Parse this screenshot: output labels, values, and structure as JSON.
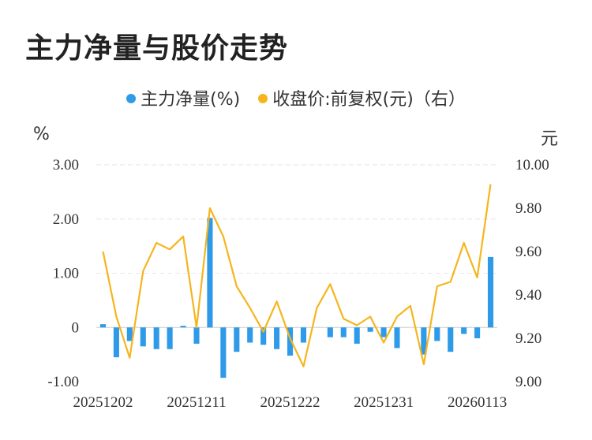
{
  "title": "主力净量与股价走势",
  "legend": {
    "net": "主力净量(%)",
    "price": "收盘价:前复权(元)（右）"
  },
  "colors": {
    "bar": "#2f9be8",
    "line": "#f5b51d",
    "grid": "#e6e6e6"
  },
  "chart_data": {
    "type": "bar+line",
    "title": "主力净量与股价走势",
    "left_unit": "%",
    "right_unit": "元",
    "y_left_ticks": [
      "3.00",
      "2.00",
      "1.00",
      "0",
      "-1.00"
    ],
    "y_right_ticks": [
      "10.00",
      "9.80",
      "9.60",
      "9.40",
      "9.20",
      "9.00"
    ],
    "x_tick_labels": [
      {
        "index": 0,
        "label": "20251202"
      },
      {
        "index": 7,
        "label": "20251211"
      },
      {
        "index": 14,
        "label": "20251222"
      },
      {
        "index": 21,
        "label": "20251231"
      },
      {
        "index": 28,
        "label": "20260113"
      }
    ],
    "ylim_left": [
      -1.0,
      3.0
    ],
    "ylim_right": [
      9.0,
      10.0
    ],
    "grid": true,
    "legend_position": "top",
    "series": [
      {
        "name": "主力净量(%)",
        "type": "bar",
        "axis": "left",
        "values": [
          0.06,
          -0.55,
          -0.25,
          -0.35,
          -0.4,
          -0.4,
          0.03,
          -0.3,
          2.02,
          -0.93,
          -0.45,
          -0.28,
          -0.32,
          -0.4,
          -0.52,
          -0.28,
          0,
          -0.18,
          -0.18,
          -0.3,
          -0.08,
          -0.18,
          -0.38,
          0,
          -0.5,
          -0.25,
          -0.45,
          -0.12,
          -0.2,
          1.3
        ]
      },
      {
        "name": "收盘价:前复权(元)（右）",
        "type": "line",
        "axis": "right",
        "values": [
          9.6,
          9.3,
          9.11,
          9.51,
          9.64,
          9.61,
          9.67,
          9.25,
          9.8,
          9.67,
          9.44,
          9.34,
          9.23,
          9.37,
          9.2,
          9.07,
          9.34,
          9.45,
          9.29,
          9.26,
          9.3,
          9.18,
          9.3,
          9.35,
          9.08,
          9.44,
          9.46,
          9.64,
          9.48,
          9.91
        ]
      }
    ]
  }
}
